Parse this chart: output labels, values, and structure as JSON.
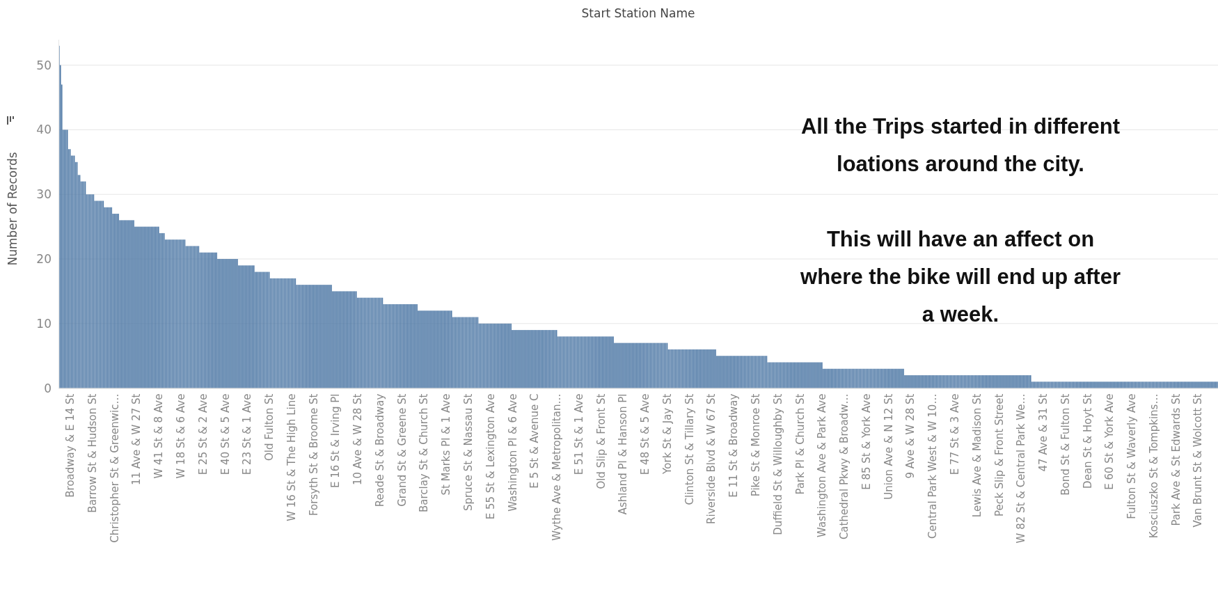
{
  "chart_data": {
    "type": "bar",
    "title": "Start Station Name",
    "ylabel": "Number of Records",
    "color": "#4e78a5",
    "ylim": [
      0,
      54
    ],
    "yticks": [
      0,
      10,
      20,
      30,
      40,
      50
    ],
    "grid": "y",
    "annotations": [
      "All the Trips started in different\nloations around the city.\n\nThis will have an affect on\nwhere the bike will end up after\na week."
    ],
    "categories": [
      null,
      null,
      null,
      null,
      null,
      null,
      null,
      null,
      "Broadway & E 14 St",
      null,
      null,
      null,
      null,
      null,
      null,
      null,
      null,
      null,
      null,
      null,
      null,
      null,
      null,
      null,
      "Barrow St & Hudson St",
      null,
      null,
      null,
      null,
      null,
      null,
      null,
      null,
      null,
      null,
      null,
      null,
      null,
      null,
      null,
      "Christopher St & Greenwic…",
      null,
      null,
      null,
      null,
      null,
      null,
      null,
      null,
      null,
      null,
      null,
      null,
      null,
      null,
      null,
      "11 Ave & W 27 St",
      null,
      null,
      null,
      null,
      null,
      null,
      null,
      null,
      null,
      null,
      null,
      null,
      null,
      null,
      null,
      "W 41 St & 8 Ave",
      null,
      null,
      null,
      null,
      null,
      null,
      null,
      null,
      null,
      null,
      null,
      null,
      null,
      null,
      null,
      "W 18 St & 6 Ave",
      null,
      null,
      null,
      null,
      null,
      null,
      null,
      null,
      null,
      null,
      null,
      null,
      null,
      null,
      null,
      "E 25 St & 2 Ave",
      null,
      null,
      null,
      null,
      null,
      null,
      null,
      null,
      null,
      null,
      null,
      null,
      null,
      null,
      null,
      "E 40 St & 5 Ave",
      null,
      null,
      null,
      null,
      null,
      null,
      null,
      null,
      null,
      null,
      null,
      null,
      null,
      null,
      null,
      "E 23 St & 1 Ave",
      null,
      null,
      null,
      null,
      null,
      null,
      null,
      null,
      null,
      null,
      null,
      null,
      null,
      null,
      null,
      "Old Fulton St",
      null,
      null,
      null,
      null,
      null,
      null,
      null,
      null,
      null,
      null,
      null,
      null,
      null,
      null,
      null,
      "W 16 St & The High Line",
      null,
      null,
      null,
      null,
      null,
      null,
      null,
      null,
      null,
      null,
      null,
      null,
      null,
      null,
      null,
      "Forsyth St & Broome St",
      null,
      null,
      null,
      null,
      null,
      null,
      null,
      null,
      null,
      null,
      null,
      null,
      null,
      null,
      null,
      "E 16 St & Irving Pl",
      null,
      null,
      null,
      null,
      null,
      null,
      null,
      null,
      null,
      null,
      null,
      null,
      null,
      null,
      null,
      "10 Ave & W 28 St",
      null,
      null,
      null,
      null,
      null,
      null,
      null,
      null,
      null,
      null,
      null,
      null,
      null,
      null,
      null,
      "Reade St & Broadway",
      null,
      null,
      null,
      null,
      null,
      null,
      null,
      null,
      null,
      null,
      null,
      null,
      null,
      null,
      null,
      "Grand St & Greene St",
      null,
      null,
      null,
      null,
      null,
      null,
      null,
      null,
      null,
      null,
      null,
      null,
      null,
      null,
      null,
      "Barclay St & Church St",
      null,
      null,
      null,
      null,
      null,
      null,
      null,
      null,
      null,
      null,
      null,
      null,
      null,
      null,
      null,
      "St Marks Pl & 1 Ave",
      null,
      null,
      null,
      null,
      null,
      null,
      null,
      null,
      null,
      null,
      null,
      null,
      null,
      null,
      null,
      "Spruce St & Nassau St",
      null,
      null,
      null,
      null,
      null,
      null,
      null,
      null,
      null,
      null,
      null,
      null,
      null,
      null,
      null,
      "E 55 St & Lexington Ave",
      null,
      null,
      null,
      null,
      null,
      null,
      null,
      null,
      null,
      null,
      null,
      null,
      null,
      null,
      null,
      "Washington Pl & 6 Ave",
      null,
      null,
      null,
      null,
      null,
      null,
      null,
      null,
      null,
      null,
      null,
      null,
      null,
      null,
      null,
      "E 5 St & Avenue C",
      null,
      null,
      null,
      null,
      null,
      null,
      null,
      null,
      null,
      null,
      null,
      null,
      null,
      null,
      null,
      "Wythe Ave & Metropolitan…",
      null,
      null,
      null,
      null,
      null,
      null,
      null,
      null,
      null,
      null,
      null,
      null,
      null,
      null,
      null,
      "E 51 St & 1 Ave",
      null,
      null,
      null,
      null,
      null,
      null,
      null,
      null,
      null,
      null,
      null,
      null,
      null,
      null,
      null,
      "Old Slip & Front St",
      null,
      null,
      null,
      null,
      null,
      null,
      null,
      null,
      null,
      null,
      null,
      null,
      null,
      null,
      null,
      "Ashland Pl & Hanson Pl",
      null,
      null,
      null,
      null,
      null,
      null,
      null,
      null,
      null,
      null,
      null,
      null,
      null,
      null,
      null,
      "E 48 St & 5 Ave",
      null,
      null,
      null,
      null,
      null,
      null,
      null,
      null,
      null,
      null,
      null,
      null,
      null,
      null,
      null,
      "York St & Jay St",
      null,
      null,
      null,
      null,
      null,
      null,
      null,
      null,
      null,
      null,
      null,
      null,
      null,
      null,
      null,
      "Clinton St & Tillary St",
      null,
      null,
      null,
      null,
      null,
      null,
      null,
      null,
      null,
      null,
      null,
      null,
      null,
      null,
      null,
      "Riverside Blvd & W 67 St",
      null,
      null,
      null,
      null,
      null,
      null,
      null,
      null,
      null,
      null,
      null,
      null,
      null,
      null,
      null,
      "E 11 St & Broadway",
      null,
      null,
      null,
      null,
      null,
      null,
      null,
      null,
      null,
      null,
      null,
      null,
      null,
      null,
      null,
      "Pike St & Monroe St",
      null,
      null,
      null,
      null,
      null,
      null,
      null,
      null,
      null,
      null,
      null,
      null,
      null,
      null,
      null,
      "Duffield St & Willoughby St",
      null,
      null,
      null,
      null,
      null,
      null,
      null,
      null,
      null,
      null,
      null,
      null,
      null,
      null,
      null,
      "Park Pl & Church St",
      null,
      null,
      null,
      null,
      null,
      null,
      null,
      null,
      null,
      null,
      null,
      null,
      null,
      null,
      null,
      "Washington Ave & Park Ave",
      null,
      null,
      null,
      null,
      null,
      null,
      null,
      null,
      null,
      null,
      null,
      null,
      null,
      null,
      null,
      "Cathedral Pkwy & Broadw…",
      null,
      null,
      null,
      null,
      null,
      null,
      null,
      null,
      null,
      null,
      null,
      null,
      null,
      null,
      null,
      "E 85 St & York Ave",
      null,
      null,
      null,
      null,
      null,
      null,
      null,
      null,
      null,
      null,
      null,
      null,
      null,
      null,
      null,
      "Union Ave & N 12 St",
      null,
      null,
      null,
      null,
      null,
      null,
      null,
      null,
      null,
      null,
      null,
      null,
      null,
      null,
      null,
      "9 Ave & W 28 St",
      null,
      null,
      null,
      null,
      null,
      null,
      null,
      null,
      null,
      null,
      null,
      null,
      null,
      null,
      null,
      "Central Park West & W 10…",
      null,
      null,
      null,
      null,
      null,
      null,
      null,
      null,
      null,
      null,
      null,
      null,
      null,
      null,
      null,
      "E 77 St & 3 Ave",
      null,
      null,
      null,
      null,
      null,
      null,
      null,
      null,
      null,
      null,
      null,
      null,
      null,
      null,
      null,
      "Lewis Ave & Madison St",
      null,
      null,
      null,
      null,
      null,
      null,
      null,
      null,
      null,
      null,
      null,
      null,
      null,
      null,
      null,
      "Peck Slip & Front Street",
      null,
      null,
      null,
      null,
      null,
      null,
      null,
      null,
      null,
      null,
      null,
      null,
      null,
      null,
      null,
      "W 82 St & Central Park We…",
      null,
      null,
      null,
      null,
      null,
      null,
      null,
      null,
      null,
      null,
      null,
      null,
      null,
      null,
      null,
      "47 Ave & 31 St",
      null,
      null,
      null,
      null,
      null,
      null,
      null,
      null,
      null,
      null,
      null,
      null,
      null,
      null,
      null,
      "Bond St & Fulton St",
      null,
      null,
      null,
      null,
      null,
      null,
      null,
      null,
      null,
      null,
      null,
      null,
      null,
      null,
      null,
      "Dean St & Hoyt St",
      null,
      null,
      null,
      null,
      null,
      null,
      null,
      null,
      null,
      null,
      null,
      null,
      null,
      null,
      null,
      "E 60 St & York Ave",
      null,
      null,
      null,
      null,
      null,
      null,
      null,
      null,
      null,
      null,
      null,
      null,
      null,
      null,
      null,
      "Fulton St & Waverly Ave",
      null,
      null,
      null,
      null,
      null,
      null,
      null,
      null,
      null,
      null,
      null,
      null,
      null,
      null,
      null,
      "Kosciuszko St & Tompkins…",
      null,
      null,
      null,
      null,
      null,
      null,
      null,
      null,
      null,
      null,
      null,
      null,
      null,
      null,
      null,
      "Park Ave & St Edwards St",
      null,
      null,
      null,
      null,
      null,
      null,
      null,
      null,
      null,
      null,
      null,
      null,
      null,
      null,
      null,
      "Van Brunt St & Wolcott St",
      null,
      null,
      null,
      null,
      null,
      null,
      null,
      null,
      null,
      null,
      null,
      null,
      null,
      null
    ],
    "values": [
      53,
      50,
      47,
      40,
      40,
      40,
      40,
      37,
      37,
      36,
      36,
      36,
      35,
      35,
      33,
      33,
      32,
      32,
      32,
      32,
      30,
      30,
      30,
      30,
      30,
      30,
      29,
      29,
      29,
      29,
      29,
      29,
      29,
      28,
      28,
      28,
      28,
      28,
      28,
      27,
      27,
      27,
      27,
      27,
      26,
      26,
      26,
      26,
      26,
      26,
      26,
      26,
      26,
      26,
      26,
      25,
      25,
      25,
      25,
      25,
      25,
      25,
      25,
      25,
      25,
      25,
      25,
      25,
      25,
      25,
      25,
      25,
      25,
      24,
      24,
      24,
      24,
      23,
      23,
      23,
      23,
      23,
      23,
      23,
      23,
      23,
      23,
      23,
      23,
      23,
      23,
      23,
      22,
      22,
      22,
      22,
      22,
      22,
      22,
      22,
      22,
      22,
      21,
      21,
      21,
      21,
      21,
      21,
      21,
      21,
      21,
      21,
      21,
      21,
      21,
      20,
      20,
      20,
      20,
      20,
      20,
      20,
      20,
      20,
      20,
      20,
      20,
      20,
      20,
      20,
      19,
      19,
      19,
      19,
      19,
      19,
      19,
      19,
      19,
      19,
      19,
      19,
      18,
      18,
      18,
      18,
      18,
      18,
      18,
      18,
      18,
      18,
      18,
      17,
      17,
      17,
      17,
      17,
      17,
      17,
      17,
      17,
      17,
      17,
      17,
      17,
      17,
      17,
      17,
      17,
      17,
      17,
      16,
      16,
      16,
      16,
      16,
      16,
      16,
      16,
      16,
      16,
      16,
      16,
      16,
      16,
      16,
      16,
      16,
      16,
      16,
      16,
      16,
      16,
      16,
      16,
      16,
      16,
      15,
      15,
      15,
      15,
      15,
      15,
      15,
      15,
      15,
      15,
      15,
      15,
      15,
      15,
      15,
      15,
      15,
      15,
      14,
      14,
      14,
      14,
      14,
      14,
      14,
      14,
      14,
      14,
      14,
      14,
      14,
      14,
      14,
      14,
      14,
      14,
      14,
      13,
      13,
      13,
      13,
      13,
      13,
      13,
      13,
      13,
      13,
      13,
      13,
      13,
      13,
      13,
      13,
      13,
      13,
      13,
      13,
      13,
      13,
      13,
      13,
      13,
      12,
      12,
      12,
      12,
      12,
      12,
      12,
      12,
      12,
      12,
      12,
      12,
      12,
      12,
      12,
      12,
      12,
      12,
      12,
      12,
      12,
      12,
      12,
      12,
      12,
      11,
      11,
      11,
      11,
      11,
      11,
      11,
      11,
      11,
      11,
      11,
      11,
      11,
      11,
      11,
      11,
      11,
      11,
      11,
      10,
      10,
      10,
      10,
      10,
      10,
      10,
      10,
      10,
      10,
      10,
      10,
      10,
      10,
      10,
      10,
      10,
      10,
      10,
      10,
      10,
      10,
      10,
      10,
      9,
      9,
      9,
      9,
      9,
      9,
      9,
      9,
      9,
      9,
      9,
      9,
      9,
      9,
      9,
      9,
      9,
      9,
      9,
      9,
      9,
      9,
      9,
      9,
      9,
      9,
      9,
      9,
      9,
      9,
      9,
      9,
      9,
      8,
      8,
      8,
      8,
      8,
      8,
      8,
      8,
      8,
      8,
      8,
      8,
      8,
      8,
      8,
      8,
      8,
      8,
      8,
      8,
      8,
      8,
      8,
      8,
      8,
      8,
      8,
      8,
      8,
      8,
      8,
      8,
      8,
      8,
      8,
      8,
      8,
      8,
      8,
      8,
      8,
      7,
      7,
      7,
      7,
      7,
      7,
      7,
      7,
      7,
      7,
      7,
      7,
      7,
      7,
      7,
      7,
      7,
      7,
      7,
      7,
      7,
      7,
      7,
      7,
      7,
      7,
      7,
      7,
      7,
      7,
      7,
      7,
      7,
      7,
      7,
      7,
      7,
      7,
      7,
      6,
      6,
      6,
      6,
      6,
      6,
      6,
      6,
      6,
      6,
      6,
      6,
      6,
      6,
      6,
      6,
      6,
      6,
      6,
      6,
      6,
      6,
      6,
      6,
      6,
      6,
      6,
      6,
      6,
      6,
      6,
      6,
      6,
      6,
      6,
      5,
      5,
      5,
      5,
      5,
      5,
      5,
      5,
      5,
      5,
      5,
      5,
      5,
      5,
      5,
      5,
      5,
      5,
      5,
      5,
      5,
      5,
      5,
      5,
      5,
      5,
      5,
      5,
      5,
      5,
      5,
      5,
      5,
      5,
      5,
      5,
      5,
      4,
      4,
      4,
      4,
      4,
      4,
      4,
      4,
      4,
      4,
      4,
      4,
      4,
      4,
      4,
      4,
      4,
      4,
      4,
      4,
      4,
      4,
      4,
      4,
      4,
      4,
      4,
      4,
      4,
      4,
      4,
      4,
      4,
      4,
      4,
      4,
      4,
      4,
      4,
      4,
      3,
      3,
      3,
      3,
      3,
      3,
      3,
      3,
      3,
      3,
      3,
      3,
      3,
      3,
      3,
      3,
      3,
      3,
      3,
      3,
      3,
      3,
      3,
      3,
      3,
      3,
      3,
      3,
      3,
      3,
      3,
      3,
      3,
      3,
      3,
      3,
      3,
      3,
      3,
      3,
      3,
      3,
      3,
      3,
      3,
      3,
      3,
      3,
      3,
      3,
      3,
      3,
      3,
      3,
      3,
      3,
      3,
      3,
      3,
      2,
      2,
      2,
      2,
      2,
      2,
      2,
      2,
      2,
      2,
      2,
      2,
      2,
      2,
      2,
      2,
      2,
      2,
      2,
      2,
      2,
      2,
      2,
      2,
      2,
      2,
      2,
      2,
      2,
      2,
      2,
      2,
      2,
      2,
      2,
      2,
      2,
      2,
      2,
      2,
      2,
      2,
      2,
      2,
      2,
      2,
      2,
      2,
      2,
      2,
      2,
      2,
      2,
      2,
      2,
      2,
      2,
      2,
      2,
      2,
      2,
      2,
      2,
      2,
      2,
      2,
      2,
      2,
      2,
      2,
      2,
      2,
      2,
      2,
      2,
      2,
      2,
      2,
      2,
      2,
      2,
      2,
      2,
      2,
      2,
      2,
      2,
      2,
      2,
      2,
      2,
      2,
      1,
      1,
      1,
      1,
      1,
      1,
      1,
      1,
      1,
      1,
      1,
      1,
      1,
      1,
      1,
      1,
      1,
      1,
      1,
      1,
      1,
      1,
      1,
      1,
      1,
      1,
      1,
      1,
      1,
      1,
      1,
      1,
      1,
      1,
      1,
      1,
      1,
      1,
      1,
      1,
      1,
      1,
      1,
      1,
      1,
      1,
      1,
      1,
      1,
      1,
      1,
      1,
      1,
      1,
      1,
      1,
      1,
      1,
      1,
      1,
      1,
      1,
      1,
      1,
      1,
      1,
      1,
      1,
      1,
      1,
      1,
      1,
      1,
      1,
      1,
      1,
      1,
      1,
      1,
      1,
      1,
      1,
      1,
      1,
      1,
      1,
      1,
      1,
      1,
      1,
      1,
      1,
      1,
      1,
      1,
      1,
      1,
      1,
      1,
      1,
      1,
      1,
      1,
      1,
      1,
      1,
      1,
      1,
      1,
      1,
      1,
      1,
      1,
      1,
      1,
      1,
      1,
      1,
      1,
      1,
      1,
      1,
      1,
      1,
      1,
      1,
      1,
      1,
      1,
      1,
      1,
      1,
      1,
      1,
      1
    ]
  }
}
